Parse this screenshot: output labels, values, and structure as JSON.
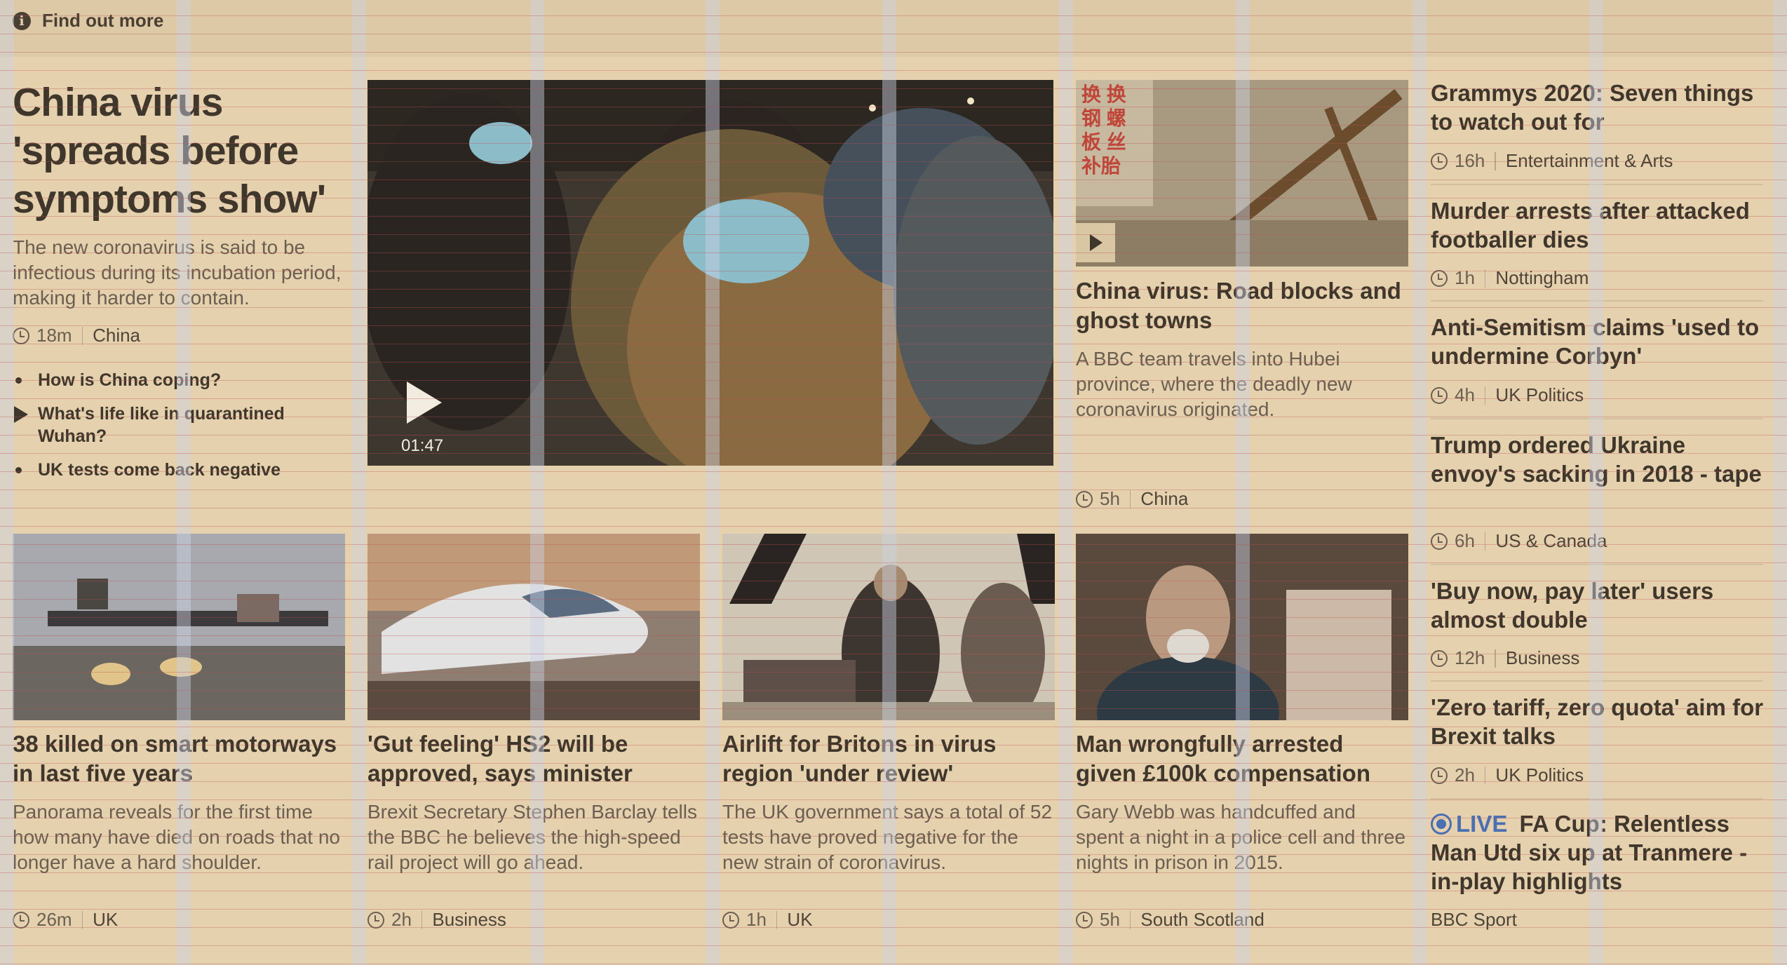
{
  "topbar": {
    "find_out_more": "Find out more",
    "info_icon": "i"
  },
  "lead": {
    "title": "China virus 'spreads before symptoms show'",
    "summary": "The new coronavirus is said to be infectious during its incubation period, making it harder to contain.",
    "time": "18m",
    "section": "China",
    "related": [
      {
        "label": "How is China coping?",
        "icon": "bullet"
      },
      {
        "label": "What's life like in quarantined Wuhan?",
        "icon": "play"
      },
      {
        "label": "UK tests come back negative",
        "icon": "bullet"
      }
    ],
    "video_duration": "01:47"
  },
  "feature": {
    "title": "China virus: Road blocks and ghost towns",
    "summary": "A BBC team travels into Hubei province, where the deadly new coronavirus originated.",
    "time": "5h",
    "section": "China",
    "sign_text": "换 换\n钢 螺\n板 丝\n补胎"
  },
  "stories": [
    {
      "title": "38 killed on smart motorways in last five years",
      "summary": "Panorama reveals for the first time how many have died on roads that no longer have a hard shoulder.",
      "time": "26m",
      "section": "UK"
    },
    {
      "title": "'Gut feeling' HS2 will be approved, says minister",
      "summary": "Brexit Secretary Stephen Barclay tells the BBC he believes the high-speed rail project will go ahead.",
      "time": "2h",
      "section": "Business"
    },
    {
      "title": "Airlift for Britons in virus region 'under review'",
      "summary": "The UK government says a total of 52 tests have proved negative for the new strain of coronavirus.",
      "time": "1h",
      "section": "UK"
    },
    {
      "title": "Man wrongfully arrested given £100k compensation",
      "summary": "Gary Webb was handcuffed and spent a night in a police cell and three nights in prison in 2015.",
      "time": "5h",
      "section": "South Scotland"
    }
  ],
  "sidebar": [
    {
      "title": "Grammys 2020: Seven things to watch out for",
      "time": "16h",
      "section": "Entertainment & Arts"
    },
    {
      "title": "Murder arrests after attacked footballer dies",
      "time": "1h",
      "section": "Nottingham"
    },
    {
      "title": "Anti-Semitism claims 'used to undermine Corbyn'",
      "time": "4h",
      "section": "UK Politics"
    },
    {
      "title": "Trump ordered Ukraine envoy's sacking in 2018 - tape",
      "time": "6h",
      "section": "US & Canada"
    },
    {
      "title": "'Buy now, pay later' users almost double",
      "time": "12h",
      "section": "Business"
    },
    {
      "title": "'Zero tariff, zero quota' aim for Brexit talks",
      "time": "2h",
      "section": "UK Politics"
    }
  ],
  "live_item": {
    "live_label": "LIVE",
    "title": "FA Cup: Relentless Man Utd six up at Tranmere - in-play highlights",
    "source": "BBC Sport"
  },
  "colors": {
    "background": "#e5d1ae",
    "live": "#4a6fb2",
    "text": "#3f362c"
  }
}
